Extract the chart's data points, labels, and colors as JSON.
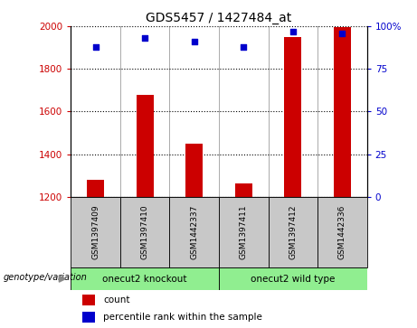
{
  "title": "GDS5457 / 1427484_at",
  "samples": [
    "GSM1397409",
    "GSM1397410",
    "GSM1442337",
    "GSM1397411",
    "GSM1397412",
    "GSM1442336"
  ],
  "counts": [
    1278,
    1680,
    1450,
    1262,
    1950,
    1995
  ],
  "percentiles": [
    88,
    93,
    91,
    88,
    97,
    96
  ],
  "ylim_left": [
    1200,
    2000
  ],
  "ylim_right": [
    0,
    100
  ],
  "yticks_left": [
    1200,
    1400,
    1600,
    1800,
    2000
  ],
  "yticks_right": [
    0,
    25,
    50,
    75,
    100
  ],
  "bar_color": "#cc0000",
  "dot_color": "#0000cc",
  "group1_label": "onecut2 knockout",
  "group2_label": "onecut2 wild type",
  "group1_indices": [
    0,
    1,
    2
  ],
  "group2_indices": [
    3,
    4,
    5
  ],
  "group_bg_color": "#90EE90",
  "sample_bg_color": "#c8c8c8",
  "legend_count_label": "count",
  "legend_pct_label": "percentile rank within the sample",
  "genotype_label": "genotype/variation"
}
